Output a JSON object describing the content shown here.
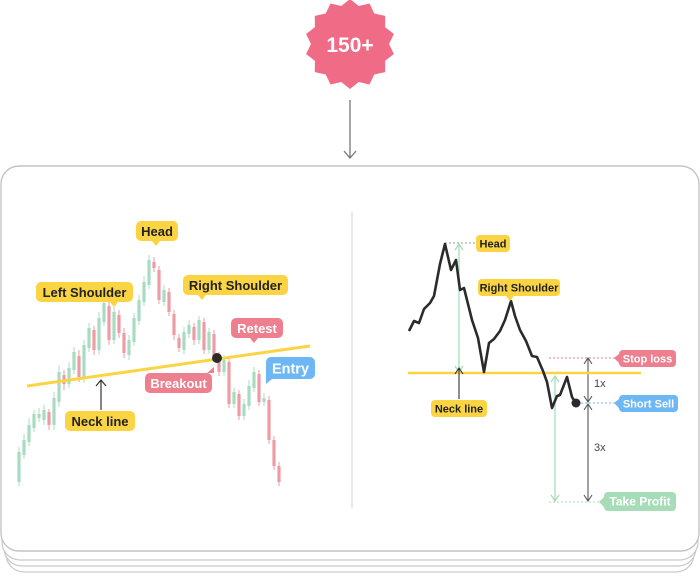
{
  "badge": {
    "text": "150+",
    "color": "#f06b85"
  },
  "colors": {
    "yellow": "#fbd443",
    "pink": "#ee7f8e",
    "blue": "#6db7f4",
    "green": "#a6ddb8",
    "bull": "#a8dcc2",
    "bear": "#ef9ba5",
    "dark": "#2b2b2b"
  },
  "left_panel": {
    "labels": {
      "head": "Head",
      "left_shoulder": "Left Shoulder",
      "right_shoulder": "Right Shoulder",
      "retest": "Retest",
      "breakout": "Breakout",
      "entry": "Entry",
      "neck_line": "Neck line"
    }
  },
  "right_panel": {
    "labels": {
      "head": "Head",
      "right_shoulder": "Right Shoulder",
      "neck_line": "Neck line",
      "stop_loss": "Stop loss",
      "short_sell": "Short Sell",
      "take_profit": "Take Profit",
      "ratio_1x": "1x",
      "ratio_3x": "3x"
    }
  }
}
